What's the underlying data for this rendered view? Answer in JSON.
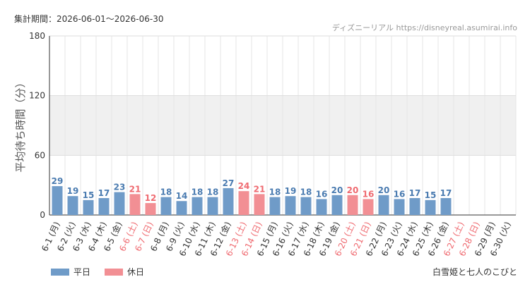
{
  "header": {
    "period": "集計期間：2026-06-01〜2026-06-30",
    "credit": "ディズニーリアル https://disneyreal.asumirai.info"
  },
  "footer": {
    "attraction": "白雪姫と七人のこびと"
  },
  "colors": {
    "weekday": "#6f9bc8",
    "holiday": "#f28f94",
    "weekday_label": "#4a7bb0",
    "holiday_label": "#ef6a70",
    "band": "#f0f0f0"
  },
  "chart_data": {
    "type": "bar",
    "ylabel": "平均待ち時間（分）",
    "ylim": [
      0,
      180
    ],
    "yticks": [
      0,
      60,
      120,
      180
    ],
    "grid": true,
    "legend_position": "bottom-left",
    "categories": [
      "6-1 (月)",
      "6-2 (火)",
      "6-3 (水)",
      "6-4 (木)",
      "6-5 (金)",
      "6-6 (土)",
      "6-7 (日)",
      "6-8 (月)",
      "6-9 (火)",
      "6-10 (水)",
      "6-11 (木)",
      "6-12 (金)",
      "6-13 (土)",
      "6-14 (日)",
      "6-15 (月)",
      "6-16 (火)",
      "6-17 (水)",
      "6-18 (木)",
      "6-19 (金)",
      "6-20 (土)",
      "6-21 (日)",
      "6-22 (月)",
      "6-23 (火)",
      "6-24 (水)",
      "6-25 (木)",
      "6-26 (金)",
      "6-27 (土)",
      "6-28 (日)",
      "6-29 (月)",
      "6-30 (火)"
    ],
    "series": [
      {
        "name": "平日",
        "values": [
          29,
          19,
          15,
          17,
          23,
          null,
          null,
          18,
          14,
          18,
          18,
          27,
          null,
          null,
          18,
          19,
          18,
          16,
          20,
          null,
          null,
          20,
          16,
          17,
          15,
          17,
          null,
          null,
          null,
          null
        ]
      },
      {
        "name": "休日",
        "values": [
          null,
          null,
          null,
          null,
          null,
          21,
          12,
          null,
          null,
          null,
          null,
          null,
          24,
          21,
          null,
          null,
          null,
          null,
          null,
          20,
          16,
          null,
          null,
          null,
          null,
          null,
          null,
          null,
          null,
          null
        ]
      }
    ]
  }
}
